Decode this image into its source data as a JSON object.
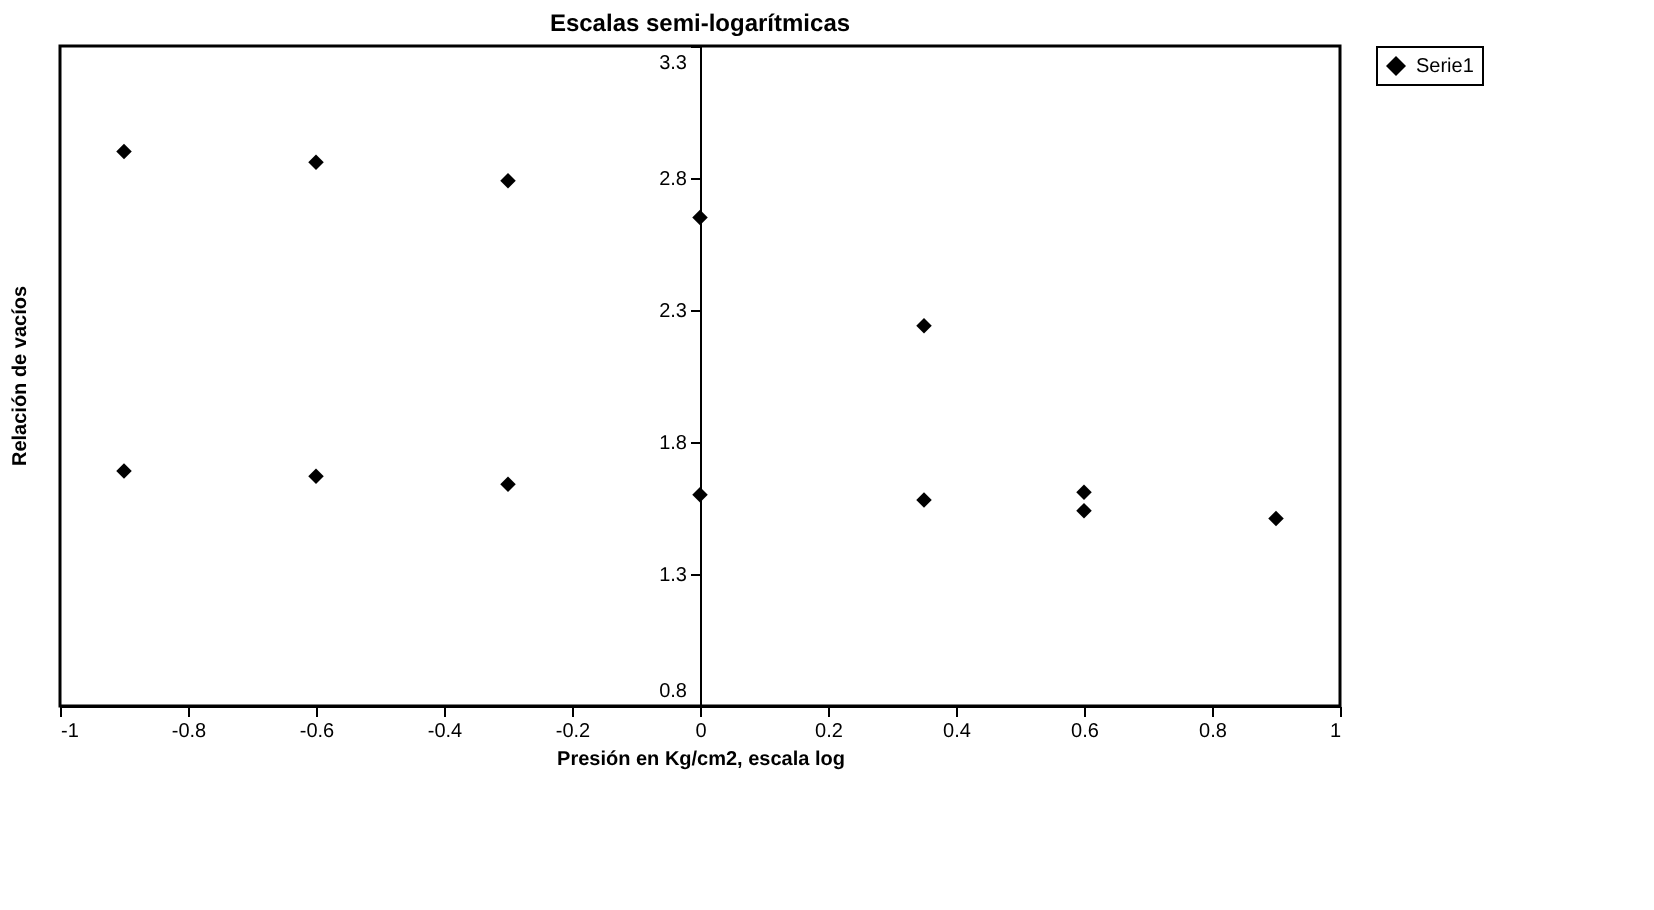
{
  "chart_data": {
    "type": "scatter",
    "title": "Escalas semi-logarítmicas",
    "xlabel": "Presión en Kg/cm2, escala log",
    "ylabel": "Relación de vacíos",
    "x": [
      -0.9,
      -0.6,
      -0.3,
      0,
      0.35,
      -0.9,
      -0.6,
      -0.3,
      0,
      0.35,
      0.6,
      0.6,
      0.9
    ],
    "series": [
      {
        "name": "Serie1",
        "color": "#000000",
        "values": [
          2.9,
          2.86,
          2.79,
          2.65,
          2.24,
          1.69,
          1.67,
          1.64,
          1.6,
          1.58,
          1.61,
          1.54,
          1.51
        ]
      }
    ],
    "xlim": [
      -1,
      1
    ],
    "xticks": [
      -1,
      -0.8,
      -0.6,
      -0.4,
      -0.2,
      0,
      0.2,
      0.4,
      0.6,
      0.8,
      1
    ],
    "ylim": [
      0.8,
      3.3
    ],
    "yticks": [
      0.8,
      1.3,
      1.8,
      2.3,
      2.8,
      3.3
    ],
    "grid": false,
    "legend": "right",
    "marker": "diamond"
  }
}
